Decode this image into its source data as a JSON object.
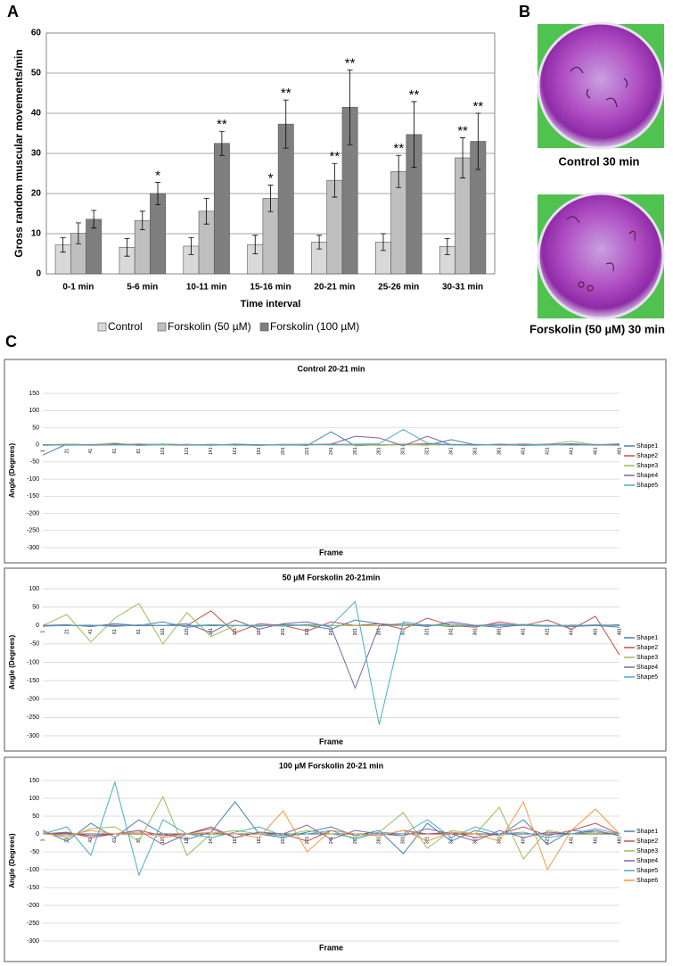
{
  "panel_labels": [
    "A",
    "B",
    "C"
  ],
  "photos": [
    {
      "caption": "Control 30 min"
    },
    {
      "caption": "Forskolin (50 µM) 30 min"
    }
  ],
  "chart_data": [
    {
      "type": "bar",
      "y_label": "Gross random muscular movements/min",
      "x_label": "Time interval",
      "categories": [
        "0-1 min",
        "5-6 min",
        "10-11 min",
        "15-16 min",
        "20-21 min",
        "25-26 min",
        "30-31 min"
      ],
      "series": [
        {
          "name": "Control",
          "color": "#d9d9d9",
          "values": [
            7.2,
            6.6,
            6.9,
            7.3,
            7.9,
            7.9,
            6.8
          ],
          "errors": [
            1.8,
            2.2,
            2.1,
            2.3,
            1.7,
            2.1,
            2.0
          ],
          "significance": [
            null,
            null,
            null,
            null,
            null,
            null,
            null
          ]
        },
        {
          "name": "Forskolin (50 µM)",
          "color": "#bfbfbf",
          "values": [
            10.1,
            13.3,
            15.6,
            18.8,
            23.3,
            25.5,
            28.9
          ],
          "errors": [
            2.6,
            2.3,
            3.2,
            3.3,
            4.2,
            4.0,
            5.0
          ],
          "significance": [
            null,
            null,
            null,
            "*",
            "**",
            "**",
            "**"
          ]
        },
        {
          "name": "Forskolin (100 µM)",
          "color": "#7f7f7f",
          "values": [
            13.6,
            20.0,
            32.5,
            37.3,
            41.5,
            34.7,
            33.0
          ],
          "errors": [
            2.2,
            2.8,
            3.0,
            6.0,
            9.3,
            8.2,
            7.0
          ],
          "significance": [
            null,
            "*",
            "**",
            "**",
            "**",
            "**",
            "**"
          ]
        }
      ],
      "ylim": [
        0,
        60
      ],
      "yticks": [
        0,
        10,
        20,
        30,
        40,
        50,
        60
      ],
      "grid": true,
      "legend": "bottom"
    },
    {
      "type": "line",
      "title": "Control 20-21 min",
      "y_label": "Angle (Degrees)",
      "x_label": "Frame",
      "x": [
        1,
        21,
        41,
        61,
        81,
        101,
        121,
        141,
        161,
        181,
        201,
        221,
        241,
        261,
        281,
        301,
        321,
        341,
        361,
        381,
        401,
        421,
        441,
        461,
        481
      ],
      "series": [
        {
          "name": "Shape1",
          "color": "#4a7eb5",
          "values": [
            -30,
            2,
            0,
            3,
            -2,
            0,
            1,
            -1,
            2,
            0,
            1,
            -2,
            38,
            -3,
            0,
            2,
            -1,
            15,
            0,
            1,
            -2,
            0,
            3,
            0,
            -1
          ]
        },
        {
          "name": "Shape2",
          "color": "#c0504d",
          "values": [
            0,
            1,
            -1,
            0,
            2,
            0,
            -1,
            1,
            0,
            -2,
            1,
            0,
            2,
            0,
            -1,
            1,
            3,
            0,
            -1,
            0,
            2,
            0,
            1,
            -1,
            0
          ]
        },
        {
          "name": "Shape3",
          "color": "#9bbb59",
          "values": [
            0,
            2,
            0,
            5,
            -1,
            0,
            1,
            0,
            -2,
            0,
            1,
            2,
            0,
            -1,
            0,
            1,
            0,
            2,
            0,
            -1,
            0,
            1,
            10,
            0,
            1
          ]
        },
        {
          "name": "Shape4",
          "color": "#8064a2",
          "values": [
            0,
            -1,
            0,
            1,
            0,
            2,
            0,
            -1,
            1,
            0,
            -1,
            0,
            2,
            25,
            20,
            -3,
            25,
            0,
            1,
            0,
            -1,
            2,
            0,
            1,
            0
          ]
        },
        {
          "name": "Shape5",
          "color": "#4bacc6",
          "values": [
            -2,
            0,
            1,
            0,
            -1,
            2,
            0,
            1,
            0,
            -1,
            0,
            1,
            0,
            2,
            3,
            45,
            5,
            0,
            -1,
            2,
            0,
            1,
            -1,
            0,
            3
          ]
        }
      ],
      "xlim": [
        1,
        481
      ],
      "ylim": [
        -300,
        150
      ],
      "yticks": [
        -300,
        -250,
        -200,
        -150,
        -100,
        -50,
        0,
        50,
        100,
        150
      ],
      "grid": true,
      "legend": "right"
    },
    {
      "type": "line",
      "title": "50 µM Forskolin 20-21min",
      "y_label": "Angle (Degrees)",
      "x_label": "Frame",
      "x": [
        1,
        21,
        41,
        61,
        81,
        101,
        121,
        141,
        161,
        181,
        201,
        221,
        241,
        261,
        281,
        301,
        321,
        341,
        361,
        381,
        401,
        421,
        441,
        461,
        481
      ],
      "series": [
        {
          "name": "Shape1",
          "color": "#4a7eb5",
          "values": [
            0,
            2,
            -3,
            5,
            0,
            10,
            -5,
            2,
            0,
            -2,
            3,
            0,
            -10,
            15,
            5,
            0,
            2,
            -3,
            0,
            4,
            0,
            -2,
            1,
            0,
            -5
          ]
        },
        {
          "name": "Shape2",
          "color": "#c0504d",
          "values": [
            0,
            0,
            0,
            0,
            0,
            0,
            0,
            40,
            -20,
            5,
            0,
            -15,
            10,
            0,
            5,
            -10,
            20,
            0,
            -5,
            10,
            0,
            15,
            -10,
            25,
            -80
          ]
        },
        {
          "name": "Shape3",
          "color": "#9bbb59",
          "values": [
            0,
            30,
            -45,
            20,
            60,
            -50,
            35,
            -30,
            0,
            0,
            0,
            0,
            0,
            0,
            0,
            0,
            0,
            0,
            0,
            0,
            0,
            0,
            0,
            0,
            0
          ]
        },
        {
          "name": "Shape4",
          "color": "#8064a2",
          "values": [
            0,
            0,
            0,
            0,
            0,
            0,
            5,
            -20,
            15,
            -10,
            5,
            10,
            -5,
            -170,
            0,
            5,
            -3,
            10,
            0,
            -5,
            2,
            0,
            -3,
            0,
            2
          ]
        },
        {
          "name": "Shape5",
          "color": "#4bacc6",
          "values": [
            -2,
            0,
            1,
            -3,
            2,
            0,
            -1,
            2,
            0,
            1,
            -2,
            3,
            0,
            65,
            -270,
            10,
            0,
            5,
            -2,
            0,
            3,
            0,
            -1,
            2,
            0
          ]
        }
      ],
      "xlim": [
        1,
        481
      ],
      "ylim": [
        -300,
        100
      ],
      "yticks": [
        -300,
        -250,
        -200,
        -150,
        -100,
        -50,
        0,
        50,
        100
      ],
      "grid": true,
      "legend": "right"
    },
    {
      "type": "line",
      "title": "100 µM Forskolin  20-21 min",
      "y_label": "Angle (Degrees)",
      "x_label": "Frame",
      "x": [
        1,
        21,
        41,
        61,
        81,
        101,
        121,
        141,
        161,
        181,
        201,
        221,
        241,
        261,
        281,
        301,
        321,
        341,
        361,
        381,
        401,
        421,
        441,
        461,
        481
      ],
      "series": [
        {
          "name": "Shape1",
          "color": "#4a7eb5",
          "values": [
            10,
            -20,
            30,
            -10,
            40,
            0,
            -15,
            5,
            90,
            0,
            -10,
            5,
            20,
            -5,
            10,
            -55,
            30,
            -20,
            10,
            -5,
            40,
            -30,
            10,
            5,
            0
          ]
        },
        {
          "name": "Shape2",
          "color": "#c0504d",
          "values": [
            0,
            5,
            -10,
            0,
            10,
            -5,
            0,
            15,
            -10,
            5,
            0,
            -20,
            10,
            0,
            -5,
            10,
            0,
            5,
            -10,
            0,
            20,
            -5,
            10,
            30,
            0
          ]
        },
        {
          "name": "Shape3",
          "color": "#9bbb59",
          "values": [
            5,
            -10,
            15,
            20,
            -20,
            105,
            -60,
            0,
            10,
            0,
            -5,
            10,
            0,
            -10,
            5,
            60,
            -40,
            10,
            0,
            75,
            -70,
            10,
            0,
            5,
            0
          ]
        },
        {
          "name": "Shape4",
          "color": "#8064a2",
          "values": [
            0,
            3,
            -5,
            0,
            10,
            -30,
            0,
            20,
            -10,
            5,
            0,
            25,
            -15,
            10,
            0,
            -5,
            15,
            0,
            -20,
            10,
            -10,
            5,
            0,
            10,
            -5
          ]
        },
        {
          "name": "Shape5",
          "color": "#4bacc6",
          "values": [
            0,
            20,
            -60,
            145,
            -115,
            40,
            0,
            -10,
            5,
            20,
            -5,
            0,
            10,
            -15,
            5,
            0,
            40,
            -10,
            20,
            0,
            5,
            -10,
            0,
            15,
            0
          ]
        },
        {
          "name": "Shape6",
          "color": "#f79646",
          "values": [
            0,
            -5,
            10,
            0,
            5,
            -10,
            0,
            5,
            0,
            -10,
            65,
            -50,
            10,
            0,
            -5,
            10,
            -20,
            5,
            0,
            -20,
            90,
            -100,
            10,
            70,
            0
          ]
        }
      ],
      "xlim": [
        1,
        481
      ],
      "ylim": [
        -300,
        150
      ],
      "yticks": [
        -300,
        -250,
        -200,
        -150,
        -100,
        -50,
        0,
        50,
        100,
        150
      ],
      "grid": true,
      "legend": "right"
    }
  ]
}
